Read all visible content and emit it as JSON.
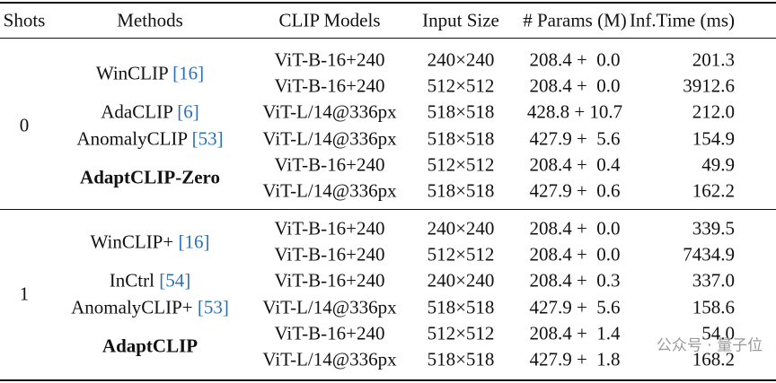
{
  "header": [
    "Shots",
    "Methods",
    "CLIP Models",
    "Input Size",
    "# Params (M)",
    "Inf.Time (ms)"
  ],
  "groups": [
    {
      "shots": "0",
      "methods": [
        {
          "name": "WinCLIP",
          "cite": "[16]",
          "bold": false,
          "rows": [
            {
              "clip": "ViT-B-16+240",
              "size": "240×240",
              "params": "208.4 +  0.0",
              "time": "201.3"
            },
            {
              "clip": "ViT-B-16+240",
              "size": "512×512",
              "params": "208.4 +  0.0",
              "time": "3912.6"
            }
          ]
        },
        {
          "name": "AdaCLIP",
          "cite": "[6]",
          "bold": false,
          "rows": [
            {
              "clip": "ViT-L/14@336px",
              "size": "518×518",
              "params": "428.8 + 10.7",
              "time": "212.0"
            }
          ]
        },
        {
          "name": "AnomalyCLIP",
          "cite": "[53]",
          "bold": false,
          "rows": [
            {
              "clip": "ViT-L/14@336px",
              "size": "518×518",
              "params": "427.9 +  5.6",
              "time": "154.9"
            }
          ]
        },
        {
          "name": "AdaptCLIP-Zero",
          "cite": null,
          "bold": true,
          "rows": [
            {
              "clip": "ViT-B-16+240",
              "size": "512×512",
              "params": "208.4 +  0.4",
              "time": "49.9"
            },
            {
              "clip": "ViT-L/14@336px",
              "size": "518×518",
              "params": "427.9 +  0.6",
              "time": "162.2"
            }
          ]
        }
      ]
    },
    {
      "shots": "1",
      "methods": [
        {
          "name": "WinCLIP+",
          "cite": "[16]",
          "bold": false,
          "rows": [
            {
              "clip": "ViT-B-16+240",
              "size": "240×240",
              "params": "208.4 +  0.0",
              "time": "339.5"
            },
            {
              "clip": "ViT-B-16+240",
              "size": "512×512",
              "params": "208.4 +  0.0",
              "time": "7434.9"
            }
          ]
        },
        {
          "name": "InCtrl",
          "cite": "[54]",
          "bold": false,
          "rows": [
            {
              "clip": "ViT-B-16+240",
              "size": "240×240",
              "params": "208.4 +  0.3",
              "time": "337.0"
            }
          ]
        },
        {
          "name": "AnomalyCLIP+",
          "cite": "[53]",
          "bold": false,
          "rows": [
            {
              "clip": "ViT-L/14@336px",
              "size": "518×518",
              "params": "427.9 +  5.6",
              "time": "158.6"
            }
          ]
        },
        {
          "name": "AdaptCLIP",
          "cite": null,
          "bold": true,
          "rows": [
            {
              "clip": "ViT-B-16+240",
              "size": "512×512",
              "params": "208.4 +  1.4",
              "time": "54.0"
            },
            {
              "clip": "ViT-L/14@336px",
              "size": "518×518",
              "params": "427.9 +  1.8",
              "time": "168.2"
            }
          ]
        }
      ]
    }
  ],
  "watermark": "公众号 · 量子位"
}
